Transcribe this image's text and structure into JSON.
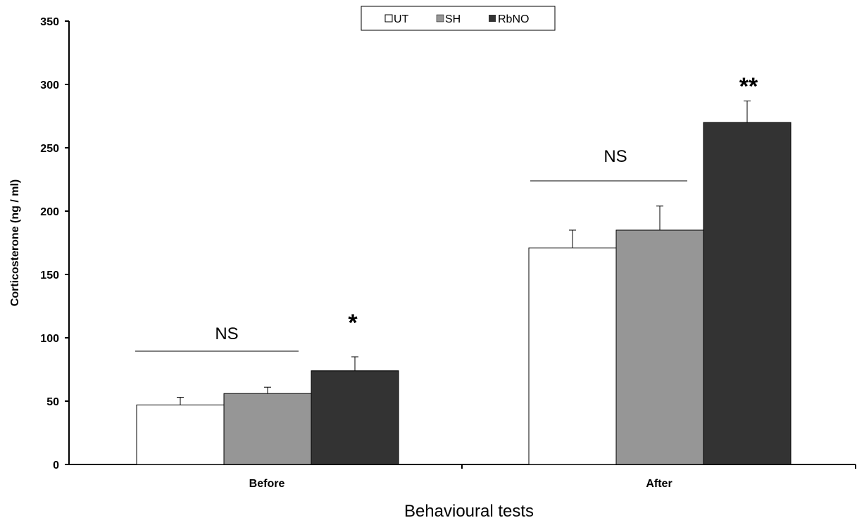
{
  "chart_data": {
    "type": "bar",
    "categories": [
      "Before",
      "After"
    ],
    "series": [
      {
        "name": "UT",
        "color": "#ffffff",
        "values": [
          47,
          171
        ],
        "errors": [
          6,
          14
        ]
      },
      {
        "name": "SH",
        "color": "#969696",
        "values": [
          56,
          185
        ],
        "errors": [
          5,
          19
        ]
      },
      {
        "name": "RbNO",
        "color": "#333333",
        "values": [
          74,
          270
        ],
        "errors": [
          11,
          17
        ]
      }
    ],
    "xlabel": "Behavioural tests",
    "ylabel": "Corticosterone (ng / ml)",
    "ylim": [
      0,
      350
    ],
    "yticks": [
      "0",
      "50",
      "100",
      "150",
      "200",
      "250",
      "300",
      "350"
    ],
    "legend_position": "top-center",
    "grid": false,
    "annotations": {
      "before_ns": "NS",
      "after_ns": "NS",
      "before_star": "*",
      "after_star": "**"
    }
  }
}
